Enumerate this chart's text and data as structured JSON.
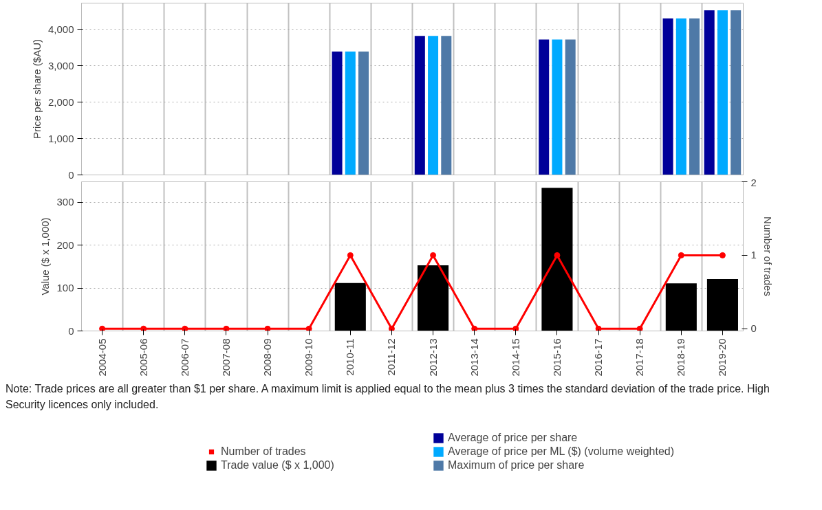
{
  "chart_data": [
    {
      "type": "bar",
      "ylabel": "Price per share ($AU)",
      "categories": [
        "2004-05",
        "2005-06",
        "2006-07",
        "2007-08",
        "2008-09",
        "2009-10",
        "2010-11",
        "2011-12",
        "2012-13",
        "2013-14",
        "2014-15",
        "2015-16",
        "2016-17",
        "2017-18",
        "2018-19",
        "2019-20"
      ],
      "series": [
        {
          "name": "Average of price per share",
          "color": "#000099",
          "values": [
            null,
            null,
            null,
            null,
            null,
            null,
            3390,
            null,
            3820,
            null,
            null,
            3720,
            null,
            null,
            4300,
            4520
          ]
        },
        {
          "name": "Average of price per ML ($) (volume weighted)",
          "color": "#00aaff",
          "values": [
            null,
            null,
            null,
            null,
            null,
            null,
            3390,
            null,
            3820,
            null,
            null,
            3720,
            null,
            null,
            4300,
            4520
          ]
        },
        {
          "name": "Maximum of price per share",
          "color": "#4e79a7",
          "values": [
            null,
            null,
            null,
            null,
            null,
            null,
            3390,
            null,
            3820,
            null,
            null,
            3720,
            null,
            null,
            4300,
            4520
          ]
        }
      ],
      "ylim": [
        0,
        4720
      ],
      "yticks": [
        0,
        {
          "value": 1000,
          "label": "1,000"
        },
        {
          "value": 2000,
          "label": "2,000"
        },
        {
          "value": 3000,
          "label": "3,000"
        },
        {
          "value": 4000,
          "label": "4,000"
        }
      ],
      "grid": true,
      "tick_labels": "y",
      "legend": "bottom"
    },
    {
      "type": "bar",
      "ylabel": "Value ($ x 1,000)",
      "y2label": "Number of trades",
      "categories": [
        "2004-05",
        "2005-06",
        "2006-07",
        "2007-08",
        "2008-09",
        "2009-10",
        "2010-11",
        "2011-12",
        "2012-13",
        "2013-14",
        "2014-15",
        "2015-16",
        "2016-17",
        "2017-18",
        "2018-19",
        "2019-20"
      ],
      "series": [
        {
          "name": "Number of trades",
          "type": "line",
          "axis": "y2",
          "color": "#ff0000",
          "values": [
            0,
            0,
            0,
            0,
            0,
            0,
            1,
            0,
            1,
            0,
            0,
            1,
            0,
            0,
            1,
            1
          ]
        },
        {
          "name": "Trade value ($ x 1,000)",
          "color": "#000000",
          "values": [
            null,
            null,
            null,
            null,
            null,
            null,
            112,
            null,
            153,
            null,
            null,
            334,
            null,
            null,
            111,
            121
          ]
        }
      ],
      "ylim": [
        0,
        348
      ],
      "yticks": [
        0,
        100,
        200,
        300
      ],
      "y2lim": [
        -0.03,
        2
      ],
      "y2ticks": [
        0,
        1,
        2
      ],
      "marker": "circle",
      "line_style": "solid",
      "grid": true,
      "legend": "bottom",
      "annotations": [
        "Note: Trade prices are all greater than $1 per share. A maximum limit is applied equal to the mean plus 3 times the standard deviation of the trade price. High Security licences only included."
      ]
    }
  ]
}
